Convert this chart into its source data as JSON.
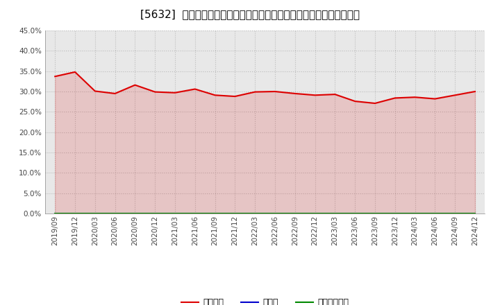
{
  "title": "[5632]  自己資本、のれん、繰延税金資産の総資産に対する比率の推移",
  "x_labels": [
    "2019/09",
    "2019/12",
    "2020/03",
    "2020/06",
    "2020/09",
    "2020/12",
    "2021/03",
    "2021/06",
    "2021/09",
    "2021/12",
    "2022/03",
    "2022/06",
    "2022/09",
    "2022/12",
    "2023/03",
    "2023/06",
    "2023/09",
    "2023/12",
    "2024/03",
    "2024/06",
    "2024/09",
    "2024/12"
  ],
  "equity_ratio": [
    0.337,
    0.348,
    0.301,
    0.295,
    0.316,
    0.299,
    0.297,
    0.306,
    0.291,
    0.288,
    0.299,
    0.3,
    0.295,
    0.291,
    0.293,
    0.276,
    0.271,
    0.284,
    0.286,
    0.282,
    0.291,
    0.3
  ],
  "goodwill_ratio": [
    0.0,
    0.0,
    0.0,
    0.0,
    0.0,
    0.0,
    0.0,
    0.0,
    0.0,
    0.0,
    0.0,
    0.0,
    0.0,
    0.0,
    0.0,
    0.0,
    0.0,
    0.0,
    0.0,
    0.0,
    0.0,
    0.0
  ],
  "deferred_tax_ratio": [
    0.0,
    0.0,
    0.0,
    0.0,
    0.0,
    0.0,
    0.0,
    0.0,
    0.0,
    0.0,
    0.0,
    0.0,
    0.0,
    0.0,
    0.0,
    0.0,
    0.0,
    0.0,
    0.0,
    0.0,
    0.0,
    0.0
  ],
  "ylim": [
    0.0,
    0.45
  ],
  "yticks": [
    0.0,
    0.05,
    0.1,
    0.15,
    0.2,
    0.25,
    0.3,
    0.35,
    0.4,
    0.45
  ],
  "equity_color": "#dd0000",
  "goodwill_color": "#0000cc",
  "deferred_tax_color": "#008800",
  "bg_color": "#ffffff",
  "plot_bg_color": "#e8e8e8",
  "grid_color": "#bbbbbb",
  "legend_labels": [
    "自己資本",
    "のれん",
    "繰延税金資産"
  ],
  "title_fontsize": 11,
  "axis_fontsize": 7.5,
  "legend_fontsize": 9
}
